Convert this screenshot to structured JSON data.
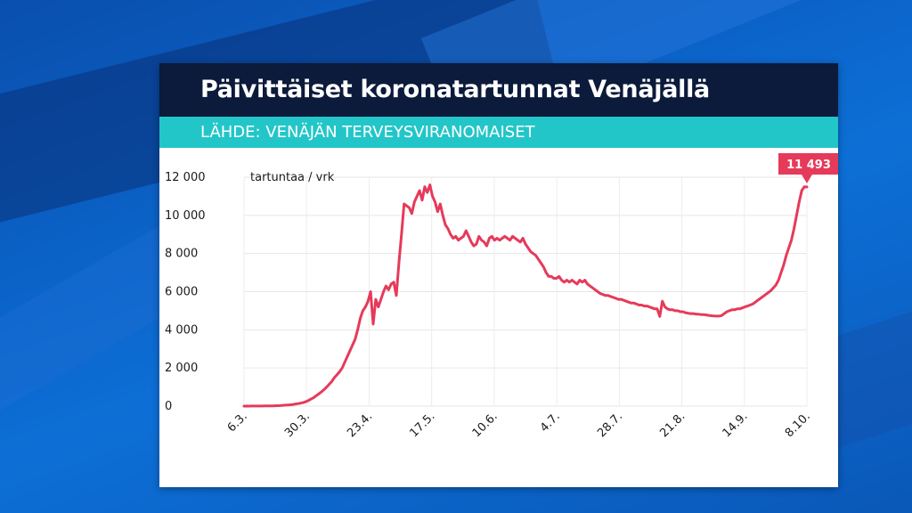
{
  "title": "Päivittäiset koronatartunnat Venäjällä",
  "source": "LÄHDE: VENÄJÄN TERVEYSVIRANOMAISET",
  "colors": {
    "title_bg": "#0c1a3b",
    "source_bg": "#23c6c8",
    "line": "#e63a5a",
    "badge": "#e63a5a"
  },
  "chart_data": {
    "type": "line",
    "ylabel": "tartuntaa / vrk",
    "ylim": [
      0,
      12000
    ],
    "yticks": [
      0,
      2000,
      4000,
      6000,
      8000,
      10000,
      12000
    ],
    "ytick_labels": [
      "0",
      "2 000",
      "4 000",
      "6 000",
      "8 000",
      "10 000",
      "12 000"
    ],
    "xtick_labels": [
      "6.3.",
      "30.3.",
      "23.4.",
      "17.5.",
      "10.6.",
      "4.7.",
      "28.7.",
      "21.8.",
      "14.9.",
      "8.10."
    ],
    "grid": true,
    "last_value_label": "11 493",
    "series": [
      {
        "start_date": "2020-03-06",
        "values": [
          2,
          3,
          2,
          4,
          3,
          5,
          6,
          5,
          8,
          10,
          12,
          15,
          20,
          25,
          30,
          40,
          50,
          60,
          70,
          90,
          110,
          130,
          160,
          190,
          240,
          300,
          380,
          450,
          550,
          650,
          750,
          870,
          1000,
          1150,
          1300,
          1500,
          1650,
          1800,
          2000,
          2300,
          2600,
          2900,
          3200,
          3500,
          4000,
          4600,
          5000,
          5200,
          5500,
          6000,
          4300,
          5600,
          5200,
          5600,
          6000,
          6300,
          6100,
          6400,
          6500,
          5800,
          7500,
          9000,
          10600,
          10500,
          10400,
          10100,
          10700,
          11000,
          11300,
          10800,
          11500,
          11200,
          11600,
          11000,
          10700,
          10200,
          10600,
          10000,
          9500,
          9300,
          9000,
          8800,
          8900,
          8700,
          8800,
          8900,
          9200,
          8900,
          8600,
          8400,
          8500,
          8900,
          8700,
          8600,
          8400,
          8800,
          8900,
          8700,
          8800,
          8700,
          8800,
          8900,
          8800,
          8700,
          8900,
          8800,
          8700,
          8600,
          8800,
          8500,
          8300,
          8100,
          8000,
          7900,
          7700,
          7500,
          7300,
          7000,
          6800,
          6800,
          6700,
          6700,
          6800,
          6600,
          6500,
          6600,
          6500,
          6600,
          6500,
          6400,
          6600,
          6500,
          6600,
          6400,
          6300,
          6200,
          6100,
          6000,
          5900,
          5850,
          5800,
          5800,
          5750,
          5700,
          5650,
          5600,
          5600,
          5550,
          5500,
          5450,
          5400,
          5400,
          5350,
          5300,
          5300,
          5250,
          5250,
          5200,
          5150,
          5100,
          5100,
          4700,
          5500,
          5200,
          5100,
          5050,
          5050,
          5000,
          5000,
          4950,
          4950,
          4900,
          4870,
          4850,
          4850,
          4830,
          4820,
          4800,
          4800,
          4780,
          4760,
          4740,
          4730,
          4720,
          4720,
          4750,
          4850,
          4950,
          5000,
          5050,
          5050,
          5100,
          5100,
          5150,
          5200,
          5250,
          5300,
          5350,
          5450,
          5550,
          5650,
          5750,
          5850,
          5950,
          6050,
          6200,
          6350,
          6600,
          7000,
          7400,
          7900,
          8300,
          8700,
          9300,
          10000,
          10700,
          11300,
          11500,
          11493
        ]
      }
    ]
  }
}
